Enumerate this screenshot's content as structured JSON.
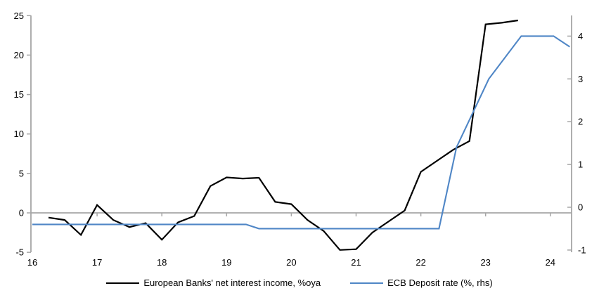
{
  "chart_data": {
    "type": "line",
    "title": "",
    "x_ticks": [
      16,
      17,
      18,
      19,
      20,
      21,
      22,
      23,
      24
    ],
    "x_range": [
      16,
      24.33
    ],
    "left_axis": {
      "ticks": [
        25,
        20,
        15,
        10,
        5,
        0,
        -5
      ],
      "range": [
        -5,
        25
      ]
    },
    "right_axis": {
      "ticks": [
        4,
        3,
        2,
        1,
        0,
        -1
      ],
      "range": [
        -1,
        4
      ]
    },
    "grid": "zero-line-only",
    "legend_position": "bottom-center",
    "axis_color": "#A6A6A6",
    "series": [
      {
        "name": "European Banks' net interest income, %oya",
        "axis": "left",
        "color": "#000000",
        "points": [
          [
            16.25,
            -0.6
          ],
          [
            16.5,
            -0.9
          ],
          [
            16.75,
            -2.8
          ],
          [
            17.0,
            1.0
          ],
          [
            17.25,
            -0.9
          ],
          [
            17.5,
            -1.8
          ],
          [
            17.75,
            -1.3
          ],
          [
            18.0,
            -3.4
          ],
          [
            18.25,
            -1.2
          ],
          [
            18.5,
            -0.4
          ],
          [
            18.75,
            3.4
          ],
          [
            19.0,
            4.5
          ],
          [
            19.25,
            4.35
          ],
          [
            19.5,
            4.45
          ],
          [
            19.75,
            1.4
          ],
          [
            20.0,
            1.1
          ],
          [
            20.25,
            -0.9
          ],
          [
            20.5,
            -2.3
          ],
          [
            20.75,
            -4.7
          ],
          [
            21.0,
            -4.6
          ],
          [
            21.25,
            -2.5
          ],
          [
            21.5,
            -1.1
          ],
          [
            21.75,
            0.3
          ],
          [
            22.0,
            5.2
          ],
          [
            22.25,
            6.6
          ],
          [
            22.5,
            8.0
          ],
          [
            22.75,
            9.1
          ],
          [
            23.0,
            23.9
          ],
          [
            23.25,
            24.1
          ],
          [
            23.5,
            24.4
          ]
        ]
      },
      {
        "name": "ECB Deposit rate (%, rhs)",
        "axis": "right",
        "color": "#4F86C6",
        "points": [
          [
            16.0,
            -0.4
          ],
          [
            19.3,
            -0.4
          ],
          [
            19.5,
            -0.5
          ],
          [
            22.28,
            -0.5
          ],
          [
            22.55,
            1.4
          ],
          [
            23.05,
            3.0
          ],
          [
            23.55,
            4.0
          ],
          [
            24.05,
            4.0
          ],
          [
            24.3,
            3.75
          ]
        ]
      }
    ]
  }
}
